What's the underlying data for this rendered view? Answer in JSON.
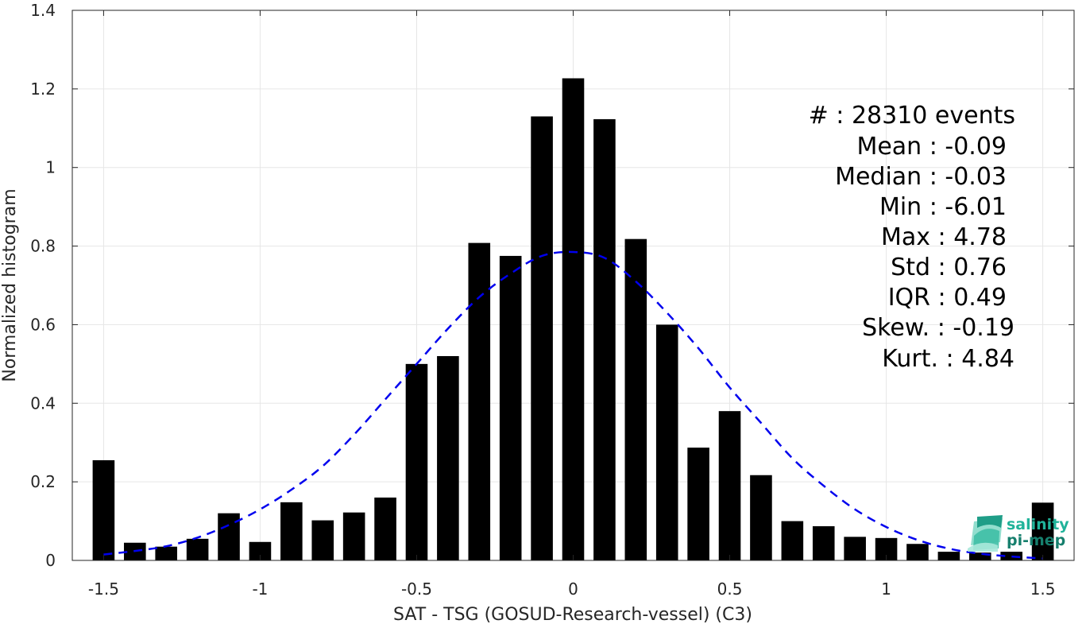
{
  "chart_data": {
    "type": "bar",
    "xlabel": "SAT - TSG (GOSUD-Research-vessel) (C3)",
    "ylabel": "Normalized histogram",
    "xlim": [
      -1.6,
      1.6
    ],
    "ylim": [
      0,
      1.4
    ],
    "xticks": [
      -1.5,
      -1,
      -0.5,
      0,
      0.5,
      1,
      1.5
    ],
    "xtick_labels": [
      "-1.5",
      "-1",
      "-0.5",
      "0",
      "0.5",
      "1",
      "1.5"
    ],
    "yticks": [
      0,
      0.2,
      0.4,
      0.6,
      0.8,
      1,
      1.2,
      1.4
    ],
    "ytick_labels": [
      "0",
      "0.2",
      "0.4",
      "0.6",
      "0.8",
      "1",
      "1.2",
      "1.4"
    ],
    "grid": true,
    "bars": {
      "color": "#000000",
      "x": [
        -1.5,
        -1.4,
        -1.3,
        -1.2,
        -1.1,
        -1.0,
        -0.9,
        -0.8,
        -0.7,
        -0.6,
        -0.5,
        -0.4,
        -0.3,
        -0.2,
        -0.1,
        0.0,
        0.1,
        0.2,
        0.3,
        0.4,
        0.5,
        0.6,
        0.7,
        0.8,
        0.9,
        1.0,
        1.1,
        1.2,
        1.3,
        1.4,
        1.5
      ],
      "values": [
        0.255,
        0.045,
        0.035,
        0.055,
        0.12,
        0.047,
        0.148,
        0.102,
        0.122,
        0.16,
        0.5,
        0.52,
        0.808,
        0.775,
        1.13,
        1.227,
        1.123,
        0.818,
        0.6,
        0.287,
        0.38,
        0.217,
        0.1,
        0.087,
        0.06,
        0.057,
        0.042,
        0.022,
        0.02,
        0.022,
        0.147
      ],
      "width": 0.07
    },
    "fit": {
      "style": "dashed",
      "color": "#0000ee",
      "x": [
        -1.5,
        -1.4,
        -1.3,
        -1.2,
        -1.1,
        -1.0,
        -0.9,
        -0.8,
        -0.7,
        -0.6,
        -0.5,
        -0.4,
        -0.3,
        -0.2,
        -0.1,
        0.0,
        0.1,
        0.2,
        0.3,
        0.4,
        0.5,
        0.6,
        0.7,
        0.8,
        0.9,
        1.0,
        1.1,
        1.2,
        1.3,
        1.4,
        1.5
      ],
      "y": [
        0.015,
        0.024,
        0.036,
        0.058,
        0.09,
        0.13,
        0.18,
        0.24,
        0.32,
        0.41,
        0.5,
        0.59,
        0.67,
        0.73,
        0.775,
        0.785,
        0.77,
        0.71,
        0.63,
        0.54,
        0.44,
        0.35,
        0.26,
        0.19,
        0.13,
        0.085,
        0.052,
        0.03,
        0.017,
        0.01,
        0.005
      ]
    }
  },
  "stats": [
    "#  : 28310 events",
    "Mean : -0.09",
    "Median : -0.03",
    "Min : -6.01",
    "Max : 4.78",
    "Std : 0.76",
    "IQR : 0.49",
    "Skew. : -0.19",
    "Kurt. : 4.84"
  ],
  "logo": {
    "line1": "salinity",
    "line2": "pi-mep",
    "color": "#20b39a"
  }
}
